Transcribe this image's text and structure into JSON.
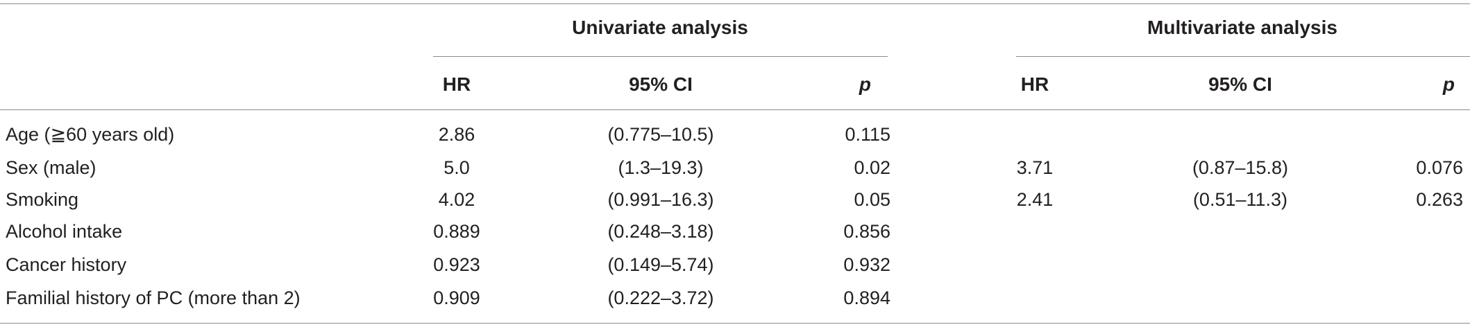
{
  "header": {
    "groups": [
      {
        "label": "Univariate analysis"
      },
      {
        "label": "Multivariate analysis"
      }
    ],
    "columns": {
      "uni_hr": "HR",
      "uni_ci": "95% CI",
      "uni_p": "p",
      "multi_hr": "HR",
      "multi_ci": "95% CI",
      "multi_p": "p"
    }
  },
  "rows": [
    {
      "label": "Age (≧60 years old)",
      "uni_hr": "2.86",
      "uni_ci": "(0.775–10.5)",
      "uni_p": "0.115",
      "multi_hr": "",
      "multi_ci": "",
      "multi_p": ""
    },
    {
      "label": "Sex (male)",
      "uni_hr": "5.0",
      "uni_ci": "(1.3–19.3)",
      "uni_p": "0.02",
      "multi_hr": "3.71",
      "multi_ci": "(0.87–15.8)",
      "multi_p": "0.076"
    },
    {
      "label": "Smoking",
      "uni_hr": "4.02",
      "uni_ci": "(0.991–16.3)",
      "uni_p": "0.05",
      "multi_hr": "2.41",
      "multi_ci": "(0.51–11.3)",
      "multi_p": "0.263"
    },
    {
      "label": "Alcohol intake",
      "uni_hr": "0.889",
      "uni_ci": "(0.248–3.18)",
      "uni_p": "0.856",
      "multi_hr": "",
      "multi_ci": "",
      "multi_p": ""
    },
    {
      "label": "Cancer history",
      "uni_hr": "0.923",
      "uni_ci": "(0.149–5.74)",
      "uni_p": "0.932",
      "multi_hr": "",
      "multi_ci": "",
      "multi_p": ""
    },
    {
      "label": "Familial history of PC (more than 2)",
      "uni_hr": "0.909",
      "uni_ci": "(0.222–3.72)",
      "uni_p": "0.894",
      "multi_hr": "",
      "multi_ci": "",
      "multi_p": ""
    }
  ]
}
